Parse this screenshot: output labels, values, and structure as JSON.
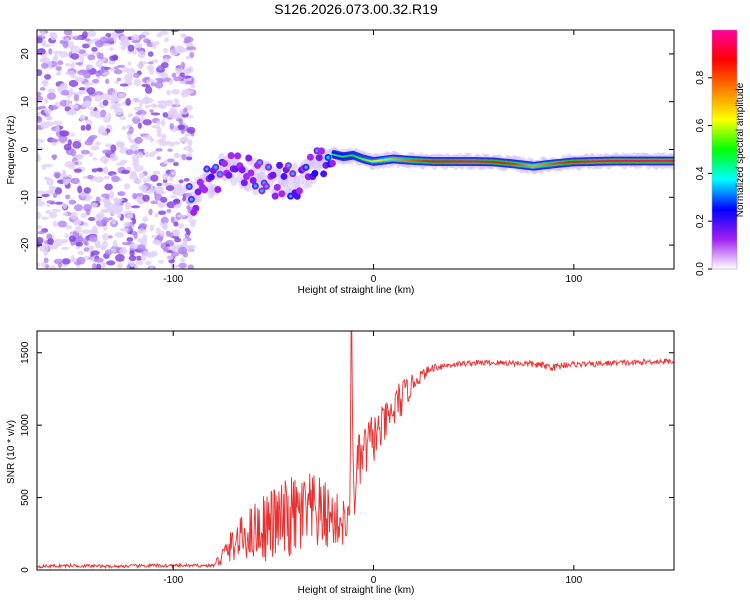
{
  "figure_title": "S126.2026.073.00.32.R19",
  "chart_data": [
    {
      "type": "heatmap",
      "title": "S126.2026.073.00.32.R19",
      "xlabel": "Height of straight line (km)",
      "ylabel": "Frequency (Hz)",
      "xlim": [
        -168,
        150
      ],
      "ylim": [
        -25,
        25
      ],
      "xticks": [
        -100,
        0,
        100
      ],
      "yticks": [
        -20,
        -10,
        0,
        10,
        20
      ],
      "xtick_labels": [
        "-100",
        "0",
        "100"
      ],
      "ytick_labels": [
        "-20",
        "-10",
        "0",
        "10",
        "20"
      ],
      "noise_region_x": [
        -168,
        -90
      ],
      "signal_track": {
        "x": [
          -92,
          -85,
          -75,
          -65,
          -55,
          -45,
          -35,
          -25,
          -20,
          -15,
          -10,
          -5,
          0,
          10,
          20,
          30,
          50,
          60,
          70,
          80,
          90,
          100,
          110,
          120,
          150
        ],
        "freq": [
          -11,
          -8,
          -4,
          -5,
          -6,
          -7,
          -6,
          -2,
          -1,
          -1.5,
          -1.2,
          -2,
          -2.5,
          -2,
          -2.3,
          -2.5,
          -2.5,
          -2.6,
          -3,
          -3.5,
          -3,
          -2.6,
          -2.5,
          -2.4,
          -2.4
        ],
        "amplitude": [
          0.25,
          0.3,
          0.3,
          0.28,
          0.28,
          0.3,
          0.32,
          0.4,
          0.45,
          0.45,
          0.5,
          0.55,
          0.6,
          0.7,
          0.8,
          0.9,
          0.95,
          0.9,
          0.85,
          0.7,
          0.8,
          0.9,
          0.95,
          0.95,
          0.95
        ]
      },
      "colorbar": {
        "label": "Normalized spectral amplitude",
        "range": [
          0,
          1
        ],
        "ticks": [
          0.0,
          0.2,
          0.4,
          0.6,
          0.8
        ],
        "tick_labels": [
          "0.0",
          "0.2",
          "0.4",
          "0.6",
          "0.8"
        ],
        "colors": [
          "#ffffff",
          "#a020f0",
          "#0000ff",
          "#00ffff",
          "#00ff00",
          "#ffff00",
          "#ff8000",
          "#ff0000",
          "#ff00a0"
        ]
      }
    },
    {
      "type": "line",
      "xlabel": "Height of straight line (km)",
      "ylabel": "SNR (10 * v/v)",
      "xlim": [
        -168,
        150
      ],
      "ylim": [
        0,
        1650
      ],
      "xticks": [
        -100,
        0,
        100
      ],
      "yticks": [
        0,
        500,
        1000,
        1500
      ],
      "xtick_labels": [
        "-100",
        "0",
        "100"
      ],
      "ytick_labels": [
        "0",
        "500",
        "1000",
        "1500"
      ],
      "color": "#e83030",
      "series": [
        {
          "name": "SNR",
          "x": [
            -168,
            -150,
            -130,
            -110,
            -90,
            -80,
            -75,
            -70,
            -65,
            -60,
            -55,
            -50,
            -45,
            -40,
            -35,
            -30,
            -25,
            -20,
            -15,
            -12,
            -11,
            -10,
            -8,
            -5,
            -3,
            0,
            3,
            5,
            8,
            10,
            12,
            15,
            18,
            20,
            25,
            30,
            40,
            50,
            60,
            70,
            80,
            90,
            96,
            100,
            110,
            120,
            130,
            140,
            150
          ],
          "y": [
            25,
            30,
            25,
            30,
            30,
            30,
            100,
            180,
            230,
            270,
            300,
            320,
            340,
            360,
            380,
            390,
            380,
            350,
            330,
            300,
            1650,
            500,
            700,
            800,
            850,
            920,
            950,
            1000,
            1050,
            1100,
            1150,
            1200,
            1250,
            1300,
            1350,
            1400,
            1420,
            1430,
            1430,
            1430,
            1420,
            1400,
            1420,
            1420,
            1420,
            1430,
            1430,
            1440,
            1440
          ],
          "noise_amplitude": [
            10,
            12,
            10,
            12,
            10,
            10,
            80,
            120,
            160,
            200,
            240,
            260,
            280,
            300,
            300,
            280,
            250,
            200,
            180,
            150,
            0,
            200,
            220,
            200,
            200,
            180,
            150,
            150,
            120,
            150,
            150,
            120,
            80,
            60,
            40,
            30,
            20,
            20,
            20,
            20,
            25,
            25,
            25,
            20,
            20,
            20,
            20,
            20,
            20
          ]
        }
      ]
    }
  ]
}
